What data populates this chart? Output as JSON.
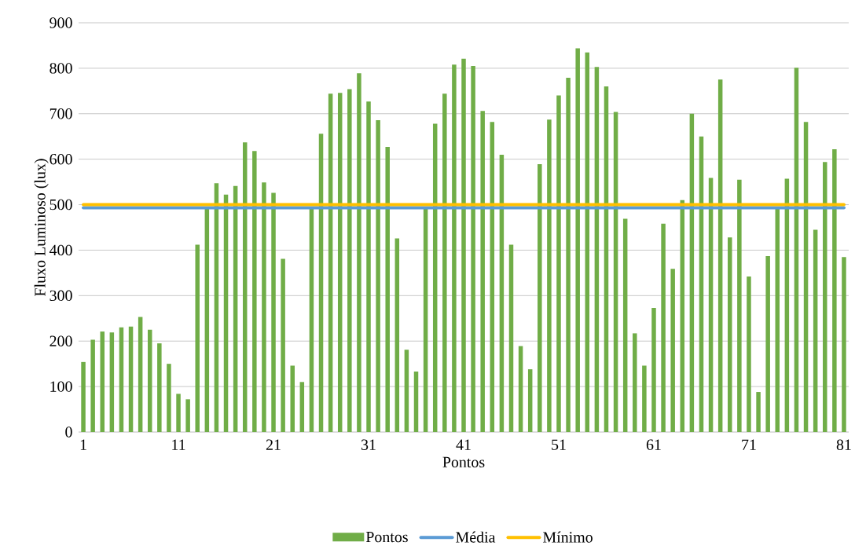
{
  "chart_data": {
    "type": "bar",
    "xlabel": "Pontos",
    "ylabel": "Fluxo Luminoso (lux)",
    "categories": [
      "1",
      null,
      null,
      null,
      null,
      null,
      null,
      null,
      null,
      null,
      "11",
      null,
      null,
      null,
      null,
      null,
      null,
      null,
      null,
      null,
      "21",
      null,
      null,
      null,
      null,
      null,
      null,
      null,
      null,
      null,
      "31",
      null,
      null,
      null,
      null,
      null,
      null,
      null,
      null,
      null,
      "41",
      null,
      null,
      null,
      null,
      null,
      null,
      null,
      null,
      null,
      "51",
      null,
      null,
      null,
      null,
      null,
      null,
      null,
      null,
      null,
      "61",
      null,
      null,
      null,
      null,
      null,
      null,
      null,
      null,
      null,
      "71",
      null,
      null,
      null,
      null,
      null,
      null,
      null,
      null,
      null,
      "81"
    ],
    "series": [
      {
        "name": "Pontos",
        "color": "#70ad47",
        "values": [
          154,
          203,
          221,
          219,
          230,
          232,
          253,
          225,
          195,
          150,
          84,
          72,
          412,
          495,
          547,
          522,
          541,
          637,
          618,
          549,
          526,
          381,
          146,
          110,
          495,
          656,
          744,
          746,
          754,
          789,
          727,
          686,
          627,
          426,
          181,
          133,
          495,
          678,
          744,
          808,
          821,
          805,
          706,
          682,
          610,
          412,
          189,
          138,
          589,
          687,
          740,
          779,
          844,
          835,
          803,
          760,
          704,
          469,
          217,
          146,
          273,
          458,
          359,
          510,
          700,
          650,
          559,
          775,
          428,
          555,
          342,
          88,
          387,
          495,
          557,
          801,
          682,
          445,
          594,
          622,
          385
        ]
      }
    ],
    "ref_lines": [
      {
        "axis": "y",
        "value": 493,
        "label": "Média",
        "color": "#5b9bd5"
      },
      {
        "axis": "y",
        "value": 500,
        "label": "Mínimo",
        "color": "#ffc000"
      }
    ],
    "ylim": [
      0,
      900
    ],
    "yticks": [
      0,
      100,
      200,
      300,
      400,
      500,
      600,
      700,
      800,
      900
    ],
    "grid": "y",
    "legend": "bottom"
  }
}
